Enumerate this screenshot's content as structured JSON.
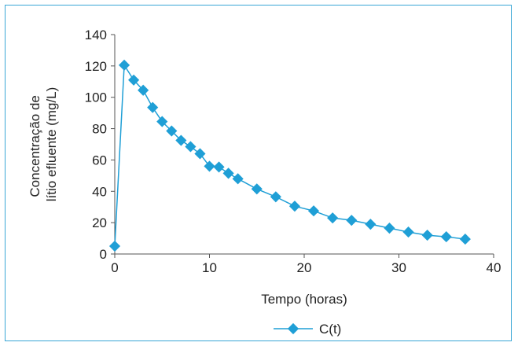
{
  "chart_data": {
    "type": "line",
    "title": "",
    "xlabel": "Tempo (horas)",
    "ylabel_lines": [
      "Concentração de",
      "lítio efluente (mg/L)"
    ],
    "xlim": [
      0,
      40
    ],
    "ylim": [
      0,
      140
    ],
    "xticks": [
      0,
      10,
      20,
      30,
      40
    ],
    "yticks": [
      0,
      20,
      40,
      60,
      80,
      100,
      120,
      140
    ],
    "grid": false,
    "legend": "bottom-center",
    "color": "#1f9fd6",
    "series": [
      {
        "name": "C(t)",
        "x": [
          0,
          1,
          2,
          3,
          4,
          5,
          6,
          7,
          8,
          9,
          10,
          11,
          12,
          13,
          15,
          17,
          19,
          21,
          23,
          25,
          27,
          29,
          31,
          33,
          35,
          37
        ],
        "y": [
          5,
          120.5,
          111,
          104.5,
          93.5,
          84.5,
          78.5,
          72.5,
          68.5,
          64,
          56,
          55.5,
          51.5,
          48,
          41.5,
          36.5,
          30.5,
          27.5,
          23,
          21.5,
          19,
          16.5,
          14,
          12,
          11,
          9.5
        ]
      }
    ]
  }
}
